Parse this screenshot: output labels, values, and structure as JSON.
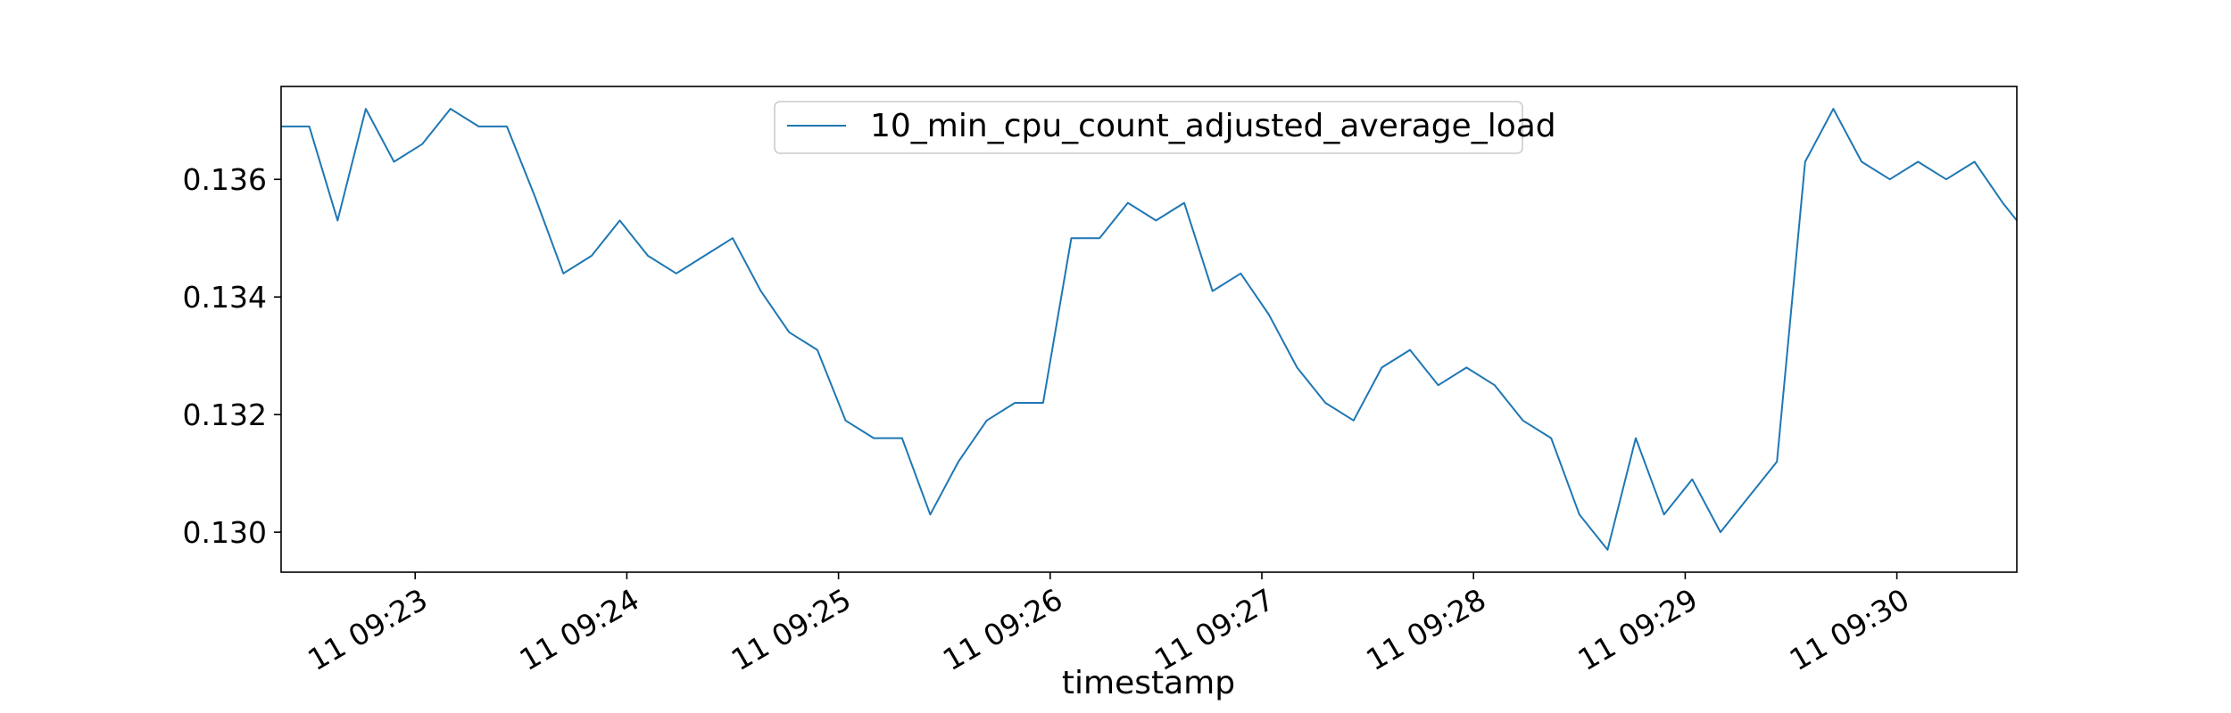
{
  "chart_data": {
    "type": "line",
    "title": "",
    "xlabel": "timestamp",
    "ylabel": "",
    "grid": false,
    "legend_position": "top-center",
    "x_tick_labels": [
      "11 09:23",
      "11 09:24",
      "11 09:25",
      "11 09:26",
      "11 09:27",
      "11 09:28",
      "11 09:29",
      "11 09:30"
    ],
    "x_ticks": [
      "09:23:00",
      "09:24:00",
      "09:25:00",
      "09:26:00",
      "09:27:00",
      "09:28:00",
      "09:29:00",
      "09:30:00"
    ],
    "x_range": [
      "09:22:22",
      "09:30:34"
    ],
    "y_tick_labels": [
      "0.130",
      "0.132",
      "0.134",
      "0.136"
    ],
    "y_ticks": [
      0.13,
      0.132,
      0.134,
      0.136
    ],
    "ylim": [
      0.12932,
      0.13758
    ],
    "series": [
      {
        "name": "10_min_cpu_count_adjusted_average_load",
        "color": "#1f77b4",
        "x": [
          "09:22:22",
          "09:22:30",
          "09:22:38",
          "09:22:46",
          "09:22:54",
          "09:23:02",
          "09:23:10",
          "09:23:18",
          "09:23:26",
          "09:23:34",
          "09:23:42",
          "09:23:50",
          "09:23:58",
          "09:24:06",
          "09:24:14",
          "09:24:22",
          "09:24:30",
          "09:24:38",
          "09:24:46",
          "09:24:54",
          "09:25:02",
          "09:25:10",
          "09:25:18",
          "09:25:26",
          "09:25:34",
          "09:25:42",
          "09:25:50",
          "09:25:58",
          "09:26:06",
          "09:26:14",
          "09:26:22",
          "09:26:30",
          "09:26:38",
          "09:26:46",
          "09:26:54",
          "09:27:02",
          "09:27:10",
          "09:27:18",
          "09:27:26",
          "09:27:34",
          "09:27:42",
          "09:27:50",
          "09:27:58",
          "09:28:06",
          "09:28:14",
          "09:28:22",
          "09:28:30",
          "09:28:38",
          "09:28:46",
          "09:28:54",
          "09:29:02",
          "09:29:10",
          "09:29:18",
          "09:29:26",
          "09:29:34",
          "09:29:42",
          "09:29:50",
          "09:29:58",
          "09:30:06",
          "09:30:14",
          "09:30:22",
          "09:30:30",
          "09:30:34"
        ],
        "values": [
          0.1369,
          0.1369,
          0.1353,
          0.1372,
          0.1363,
          0.1366,
          0.1372,
          0.1369,
          0.1369,
          0.1357,
          0.1344,
          0.1347,
          0.1353,
          0.1347,
          0.1344,
          0.1347,
          0.135,
          0.1341,
          0.1334,
          0.1331,
          0.1319,
          0.1316,
          0.1316,
          0.1303,
          0.1312,
          0.1319,
          0.1322,
          0.1322,
          0.135,
          0.135,
          0.1356,
          0.1353,
          0.1356,
          0.1341,
          0.1344,
          0.1337,
          0.1328,
          0.1322,
          0.1319,
          0.1328,
          0.1331,
          0.1325,
          0.1328,
          0.1325,
          0.1319,
          0.1316,
          0.1303,
          0.1297,
          0.1316,
          0.1303,
          0.1309,
          0.13,
          0.1306,
          0.1312,
          0.1363,
          0.1372,
          0.1363,
          0.136,
          0.1363,
          0.136,
          0.1363,
          0.1356,
          0.1353
        ]
      }
    ]
  }
}
